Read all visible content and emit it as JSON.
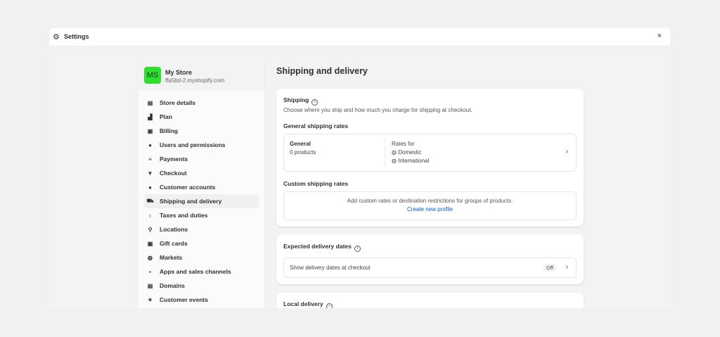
{
  "window": {
    "title": "Settings",
    "icon": "gear-icon",
    "close": "×"
  },
  "store": {
    "initials": "MS",
    "name": "My Store",
    "domain": "ffa5bd-2.myshopify.com",
    "avatar_color": "#2ee02e"
  },
  "sidebar": {
    "items": [
      {
        "label": "Store details",
        "icon": "store-icon",
        "glyph": "▤"
      },
      {
        "label": "Plan",
        "icon": "plan-icon",
        "glyph": "▟"
      },
      {
        "label": "Billing",
        "icon": "billing-icon",
        "glyph": "▣"
      },
      {
        "label": "Users and permissions",
        "icon": "users-icon",
        "glyph": "●"
      },
      {
        "label": "Payments",
        "icon": "payments-icon",
        "glyph": "≡"
      },
      {
        "label": "Checkout",
        "icon": "cart-icon",
        "glyph": "▼"
      },
      {
        "label": "Customer accounts",
        "icon": "person-icon",
        "glyph": "●"
      },
      {
        "label": "Shipping and delivery",
        "icon": "truck-icon",
        "glyph": "⛟",
        "active": true
      },
      {
        "label": "Taxes and duties",
        "icon": "tax-bag-icon",
        "glyph": "♁"
      },
      {
        "label": "Locations",
        "icon": "location-pin-icon",
        "glyph": "⚲"
      },
      {
        "label": "Gift cards",
        "icon": "gift-card-icon",
        "glyph": "▣"
      },
      {
        "label": "Markets",
        "icon": "globe-icon",
        "glyph": "◍"
      },
      {
        "label": "Apps and sales channels",
        "icon": "apps-icon",
        "glyph": "▪"
      },
      {
        "label": "Domains",
        "icon": "domains-icon",
        "glyph": "▤"
      },
      {
        "label": "Customer events",
        "icon": "cursor-click-icon",
        "glyph": "✶"
      }
    ]
  },
  "main": {
    "title": "Shipping and delivery",
    "shipping": {
      "title": "Shipping",
      "description": "Choose where you ship and how much you charge for shipping at checkout.",
      "general_heading": "General shipping rates",
      "profile_name": "General",
      "profile_count": "0 products",
      "rates_for": "Rates for",
      "zones": [
        "Domestic",
        "International"
      ],
      "custom_heading": "Custom shipping rates",
      "custom_text": "Add custom rates or destination restrictions for groups of products.",
      "custom_link": "Create new profile"
    },
    "delivery_dates": {
      "title": "Expected delivery dates",
      "row": "Show delivery dates at checkout",
      "status": "Off"
    },
    "local_delivery": {
      "title": "Local delivery"
    }
  },
  "colors": {
    "link": "#005bd3",
    "background": "#f1f1f1"
  }
}
